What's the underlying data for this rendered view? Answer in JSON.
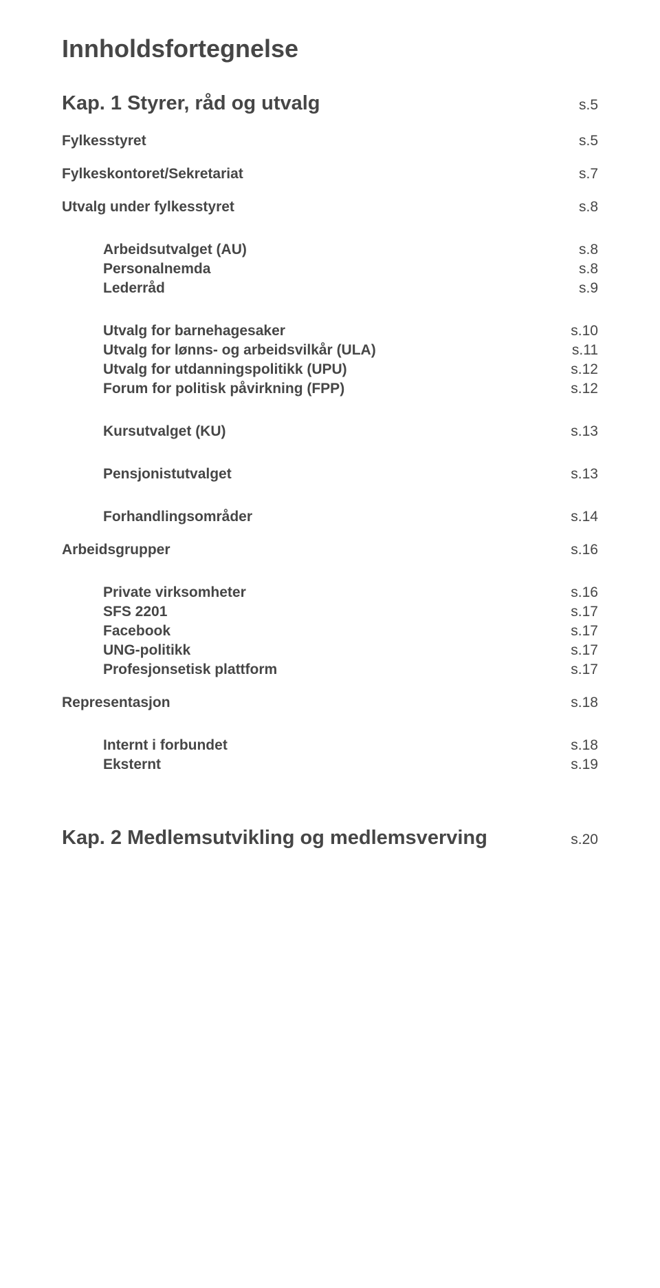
{
  "colors": {
    "text": "#464646",
    "background": "#ffffff"
  },
  "typography": {
    "title_fontsize": 36,
    "level1_fontsize": 29,
    "level2_fontsize": 21,
    "level3_fontsize": 21,
    "page_fontsize": 21,
    "font_family": "Arial"
  },
  "title": "Innholdsfortegnelse",
  "entries": {
    "kap1": {
      "label": "Kap. 1 Styrer, råd og utvalg",
      "page": "s.5"
    },
    "fylkesstyret": {
      "label": "Fylkesstyret",
      "page": "s.5"
    },
    "fylkeskontoret": {
      "label": "Fylkeskontoret/Sekretariat",
      "page": "s.7"
    },
    "utvalg_under": {
      "label": "Utvalg under fylkesstyret",
      "page": "s.8"
    },
    "arbeidsutvalget": {
      "label": "Arbeidsutvalget (AU)",
      "page": "s.8"
    },
    "personalnemda": {
      "label": "Personalnemda",
      "page": "s.8"
    },
    "lederrad": {
      "label": "Lederråd",
      "page": "s.9"
    },
    "utvalg_barnehage": {
      "label": "Utvalg for barnehagesaker",
      "page": "s.10"
    },
    "utvalg_lonns": {
      "label": "Utvalg for lønns- og arbeidsvilkår (ULA)",
      "page": "s.11"
    },
    "utvalg_utdanning": {
      "label": "Utvalg for utdanningspolitikk (UPU)",
      "page": "s.12"
    },
    "forum_politisk": {
      "label": "Forum for politisk påvirkning (FPP)",
      "page": "s.12"
    },
    "kursutvalget": {
      "label": "Kursutvalget (KU)",
      "page": "s.13"
    },
    "pensjonist": {
      "label": "Pensjonistutvalget",
      "page": "s.13"
    },
    "forhandling": {
      "label": "Forhandlingsområder",
      "page": "s.14"
    },
    "arbeidsgrupper": {
      "label": "Arbeidsgrupper",
      "page": "s.16"
    },
    "private_virk": {
      "label": "Private virksomheter",
      "page": "s.16"
    },
    "sfs": {
      "label": "SFS 2201",
      "page": "s.17"
    },
    "facebook": {
      "label": "Facebook",
      "page": "s.17"
    },
    "ung": {
      "label": "UNG-politikk",
      "page": "s.17"
    },
    "profesjonsetisk": {
      "label": "Profesjonsetisk plattform",
      "page": "s.17"
    },
    "representasjon": {
      "label": "Representasjon",
      "page": "s.18"
    },
    "internt": {
      "label": "Internt i forbundet",
      "page": "s.18"
    },
    "eksternt": {
      "label": "Eksternt",
      "page": "s.19"
    },
    "kap2": {
      "label": "Kap. 2 Medlemsutvikling og medlemsverving",
      "page": "s.20"
    }
  }
}
